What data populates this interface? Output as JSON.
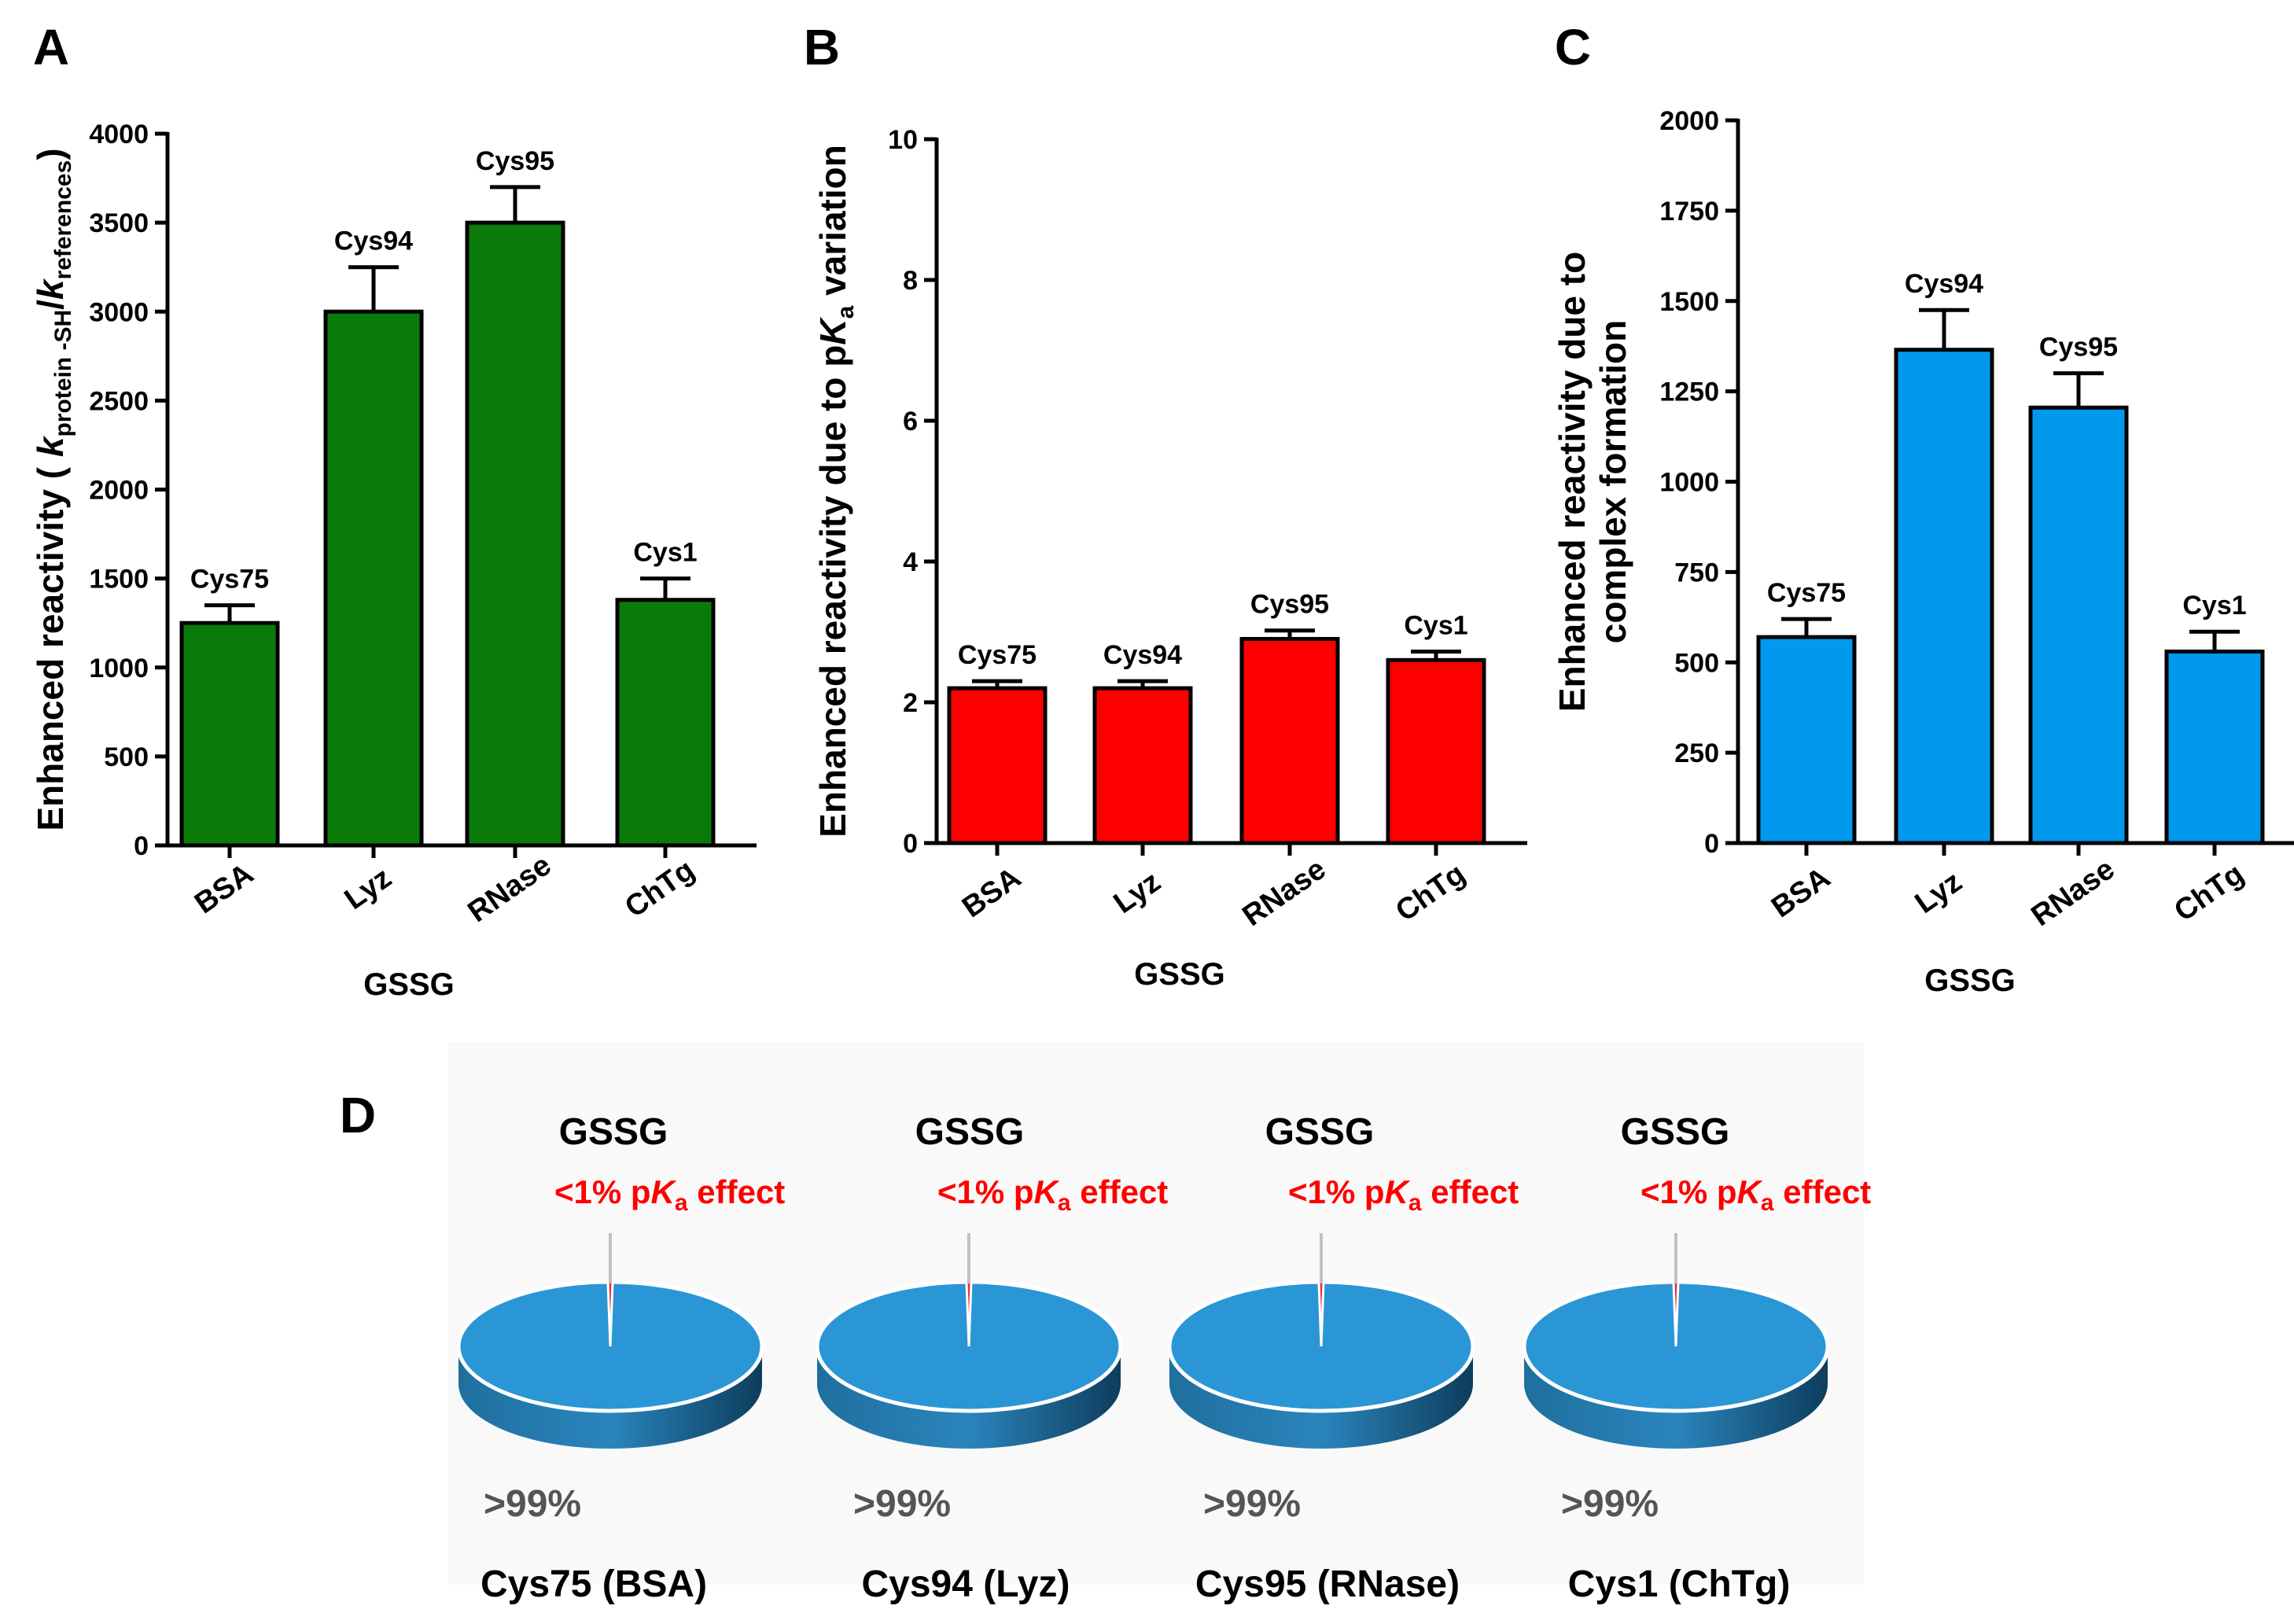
{
  "chart_data": [
    {
      "panel": "A",
      "type": "bar",
      "categories": [
        "BSA",
        "Lyz",
        "RNase",
        "ChTg"
      ],
      "values": [
        1250,
        3000,
        3500,
        1380
      ],
      "errors": [
        100,
        250,
        200,
        120
      ],
      "bar_labels": [
        "Cys75",
        "Cys94",
        "Cys95",
        "Cys1"
      ],
      "xlabel": "GSSG",
      "ylabel_parts": [
        "Enhanced reactivity ( ",
        "k",
        "protein -SH",
        "/",
        "k",
        "references",
        ")"
      ],
      "ylim": [
        0,
        4000
      ],
      "yticks": [
        0,
        500,
        1000,
        1500,
        2000,
        2500,
        3000,
        3500,
        4000
      ],
      "color": "#0a7a0a"
    },
    {
      "panel": "B",
      "type": "bar",
      "categories": [
        "BSA",
        "Lyz",
        "RNase",
        "ChTg"
      ],
      "values": [
        2.2,
        2.2,
        2.9,
        2.6
      ],
      "errors": [
        0.1,
        0.1,
        0.12,
        0.12
      ],
      "bar_labels": [
        "Cys75",
        "Cys94",
        "Cys95",
        "Cys1"
      ],
      "xlabel": "GSSG",
      "ylabel_parts": [
        "Enhanced reactivity due to p",
        "K",
        "a",
        " variation"
      ],
      "ylim": [
        0,
        10
      ],
      "yticks": [
        0,
        2,
        4,
        6,
        8,
        10
      ],
      "color": "#ff0000"
    },
    {
      "panel": "C",
      "type": "bar",
      "categories": [
        "BSA",
        "Lyz",
        "RNase",
        "ChTg"
      ],
      "values": [
        570,
        1365,
        1205,
        530
      ],
      "errors": [
        50,
        110,
        95,
        55
      ],
      "bar_labels": [
        "Cys75",
        "Cys94",
        "Cys95",
        "Cys1"
      ],
      "xlabel": "GSSG",
      "ylabel_lines": [
        "Enhanced reactivity due to",
        "complex formation"
      ],
      "ylim": [
        0,
        2000
      ],
      "yticks": [
        0,
        250,
        500,
        750,
        1000,
        1250,
        1500,
        1750,
        2000
      ],
      "color": "#0099ee"
    },
    {
      "panel": "D",
      "type": "pie",
      "pies": [
        {
          "title": "GSSG",
          "caption": "Cys75 (BSA)",
          "small_label_parts": [
            "<1% p",
            "K",
            "a",
            " effect"
          ],
          "large_label": ">99%",
          "small_fraction": 0.005,
          "large_fraction": 0.995
        },
        {
          "title": "GSSG",
          "caption": "Cys94 (Lyz)",
          "small_label_parts": [
            "<1% p",
            "K",
            "a",
            " effect"
          ],
          "large_label": ">99%",
          "small_fraction": 0.005,
          "large_fraction": 0.995
        },
        {
          "title": "GSSG",
          "caption": "Cys95 (RNase)",
          "small_label_parts": [
            "<1% p",
            "K",
            "a",
            " effect"
          ],
          "large_label": ">99%",
          "small_fraction": 0.005,
          "large_fraction": 0.995
        },
        {
          "title": "GSSG",
          "caption": "Cys1 (ChTg)",
          "small_label_parts": [
            "<1% p",
            "K",
            "a",
            " effect"
          ],
          "large_label": ">99%",
          "small_fraction": 0.005,
          "large_fraction": 0.995
        }
      ],
      "colors": {
        "major": "#2a96d6",
        "major_dark": "#1a5f87",
        "minor": "#e63030"
      }
    }
  ]
}
